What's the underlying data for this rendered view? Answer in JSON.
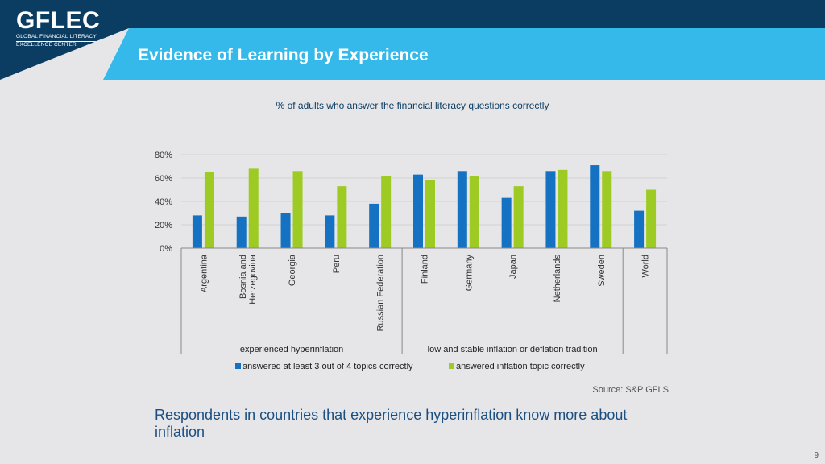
{
  "header": {
    "logo_main": "GFLEC",
    "logo_line1": "GLOBAL FINANCIAL LITERACY",
    "logo_line2": "EXCELLENCE CENTER",
    "title": "Evidence of Learning by Experience"
  },
  "colors": {
    "dark_navy": "#0b3d63",
    "banner_blue": "#35b8ea",
    "series_blue": "#1572c3",
    "series_green": "#9dcb23"
  },
  "chart_data": {
    "type": "bar",
    "title": "% of adults who answer the financial literacy questions correctly",
    "categories": [
      "Argentina",
      "Bosnia and Herzegovina",
      "Georgia",
      "Peru",
      "Russian Federation",
      "Finland",
      "Germany",
      "Japan",
      "Netherlands",
      "Sweden",
      "World"
    ],
    "series": [
      {
        "name": "answered at least 3 out of 4 topics correctly",
        "color": "#1572c3",
        "values": [
          28,
          27,
          30,
          28,
          38,
          63,
          66,
          43,
          66,
          71,
          32
        ]
      },
      {
        "name": "answered inflation topic correctly",
        "color": "#9dcb23",
        "values": [
          65,
          68,
          66,
          53,
          62,
          58,
          62,
          53,
          67,
          66,
          50
        ]
      }
    ],
    "yticks": [
      "0%",
      "20%",
      "40%",
      "60%",
      "80%"
    ],
    "ylim": [
      0,
      80
    ],
    "groups": [
      {
        "label": "experienced hyperinflation",
        "start": 0,
        "end": 4
      },
      {
        "label": "low and stable inflation or deflation tradition",
        "start": 5,
        "end": 9
      },
      {
        "label": "",
        "start": 10,
        "end": 10
      }
    ],
    "grid": true,
    "legend": "bottom"
  },
  "source": "Source: S&P GFLS",
  "footer_text": "Respondents in countries that experience hyperinflation know more about inflation",
  "page_number": "9"
}
